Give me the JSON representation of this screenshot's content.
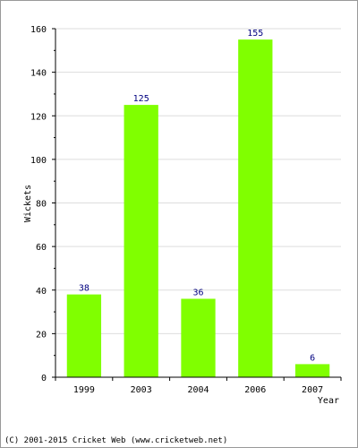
{
  "chart_data": {
    "type": "bar",
    "categories": [
      "1999",
      "2003",
      "2004",
      "2006",
      "2007"
    ],
    "values": [
      38,
      125,
      36,
      155,
      6
    ],
    "title": "",
    "xlabel": "Year",
    "ylabel": "Wickets",
    "ylim": [
      0,
      160
    ],
    "yticks": [
      0,
      20,
      40,
      60,
      80,
      100,
      120,
      140,
      160
    ],
    "grid": true,
    "bar_color": "#80ff00",
    "label_color": "#000080"
  },
  "footer": "(C) 2001-2015 Cricket Web (www.cricketweb.net)"
}
